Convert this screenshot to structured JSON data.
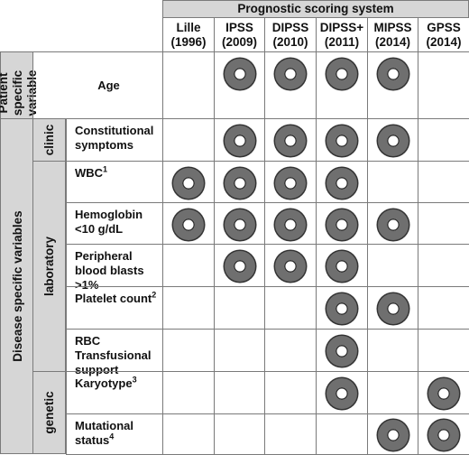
{
  "header": {
    "title": "Prognostic scoring system",
    "systems": [
      {
        "name": "Lille",
        "year": "(1996)"
      },
      {
        "name": "IPSS",
        "year": "(2009)"
      },
      {
        "name": "DIPSS",
        "year": "(2010)"
      },
      {
        "name": "DIPSS+",
        "year": "(2011)"
      },
      {
        "name": "MIPSS",
        "year": "(2014)"
      },
      {
        "name": "GPSS",
        "year": "(2014)"
      }
    ]
  },
  "groups": {
    "patient": "Patient specific variable",
    "disease": "Disease specific variables",
    "clinic": "clinic",
    "laboratory": "laboratory",
    "genetic": "genetic"
  },
  "rows": [
    {
      "label": "Age",
      "sup": "",
      "marks": [
        false,
        true,
        true,
        true,
        true,
        false
      ]
    },
    {
      "label": "Constitutional symptoms",
      "sup": "",
      "marks": [
        false,
        true,
        true,
        true,
        true,
        false
      ]
    },
    {
      "label": "WBC",
      "sup": "1",
      "marks": [
        true,
        true,
        true,
        true,
        false,
        false
      ]
    },
    {
      "label": "Hemoglobin <10 g/dL",
      "sup": "",
      "marks": [
        true,
        true,
        true,
        true,
        true,
        false
      ]
    },
    {
      "label": "Peripheral blood blasts >1%",
      "sup": "",
      "marks": [
        false,
        true,
        true,
        true,
        false,
        false
      ]
    },
    {
      "label": "Platelet count",
      "sup": "2",
      "marks": [
        false,
        false,
        false,
        true,
        true,
        false
      ]
    },
    {
      "label": "RBC Transfusional support",
      "sup": "",
      "marks": [
        false,
        false,
        false,
        true,
        false,
        false
      ]
    },
    {
      "label": "Karyotype",
      "sup": "3",
      "marks": [
        false,
        false,
        false,
        true,
        false,
        true
      ]
    },
    {
      "label": "Mutational status",
      "sup": "4",
      "marks": [
        false,
        false,
        false,
        false,
        true,
        true
      ]
    }
  ],
  "colors": {
    "shading": "#d6d6d6",
    "ring": "#6f6f6f",
    "border": "#7a7a7a"
  }
}
